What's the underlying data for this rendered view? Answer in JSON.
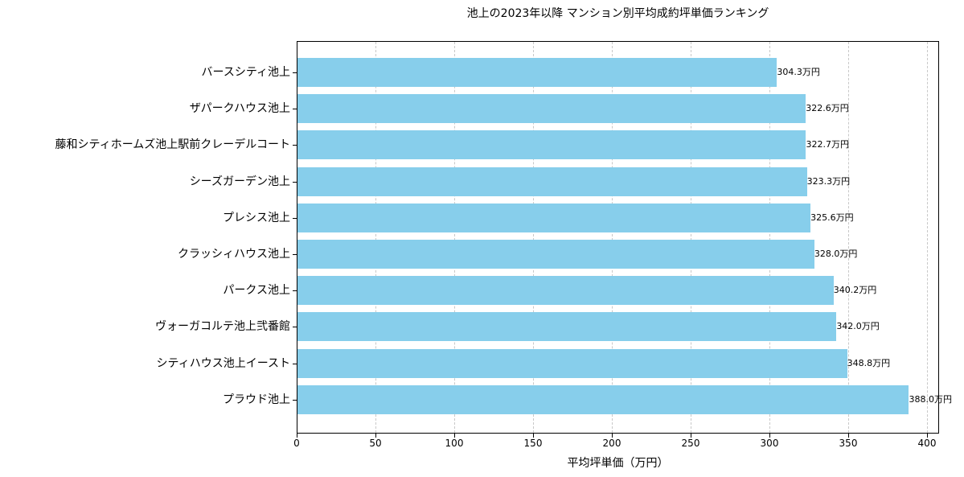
{
  "chart_data": {
    "type": "bar",
    "orientation": "horizontal",
    "title": "池上の2023年以降 マンション別平均成約坪単価ランキング",
    "xlabel": "平均坪単価（万円）",
    "ylabel": "",
    "xlim": [
      0,
      408
    ],
    "xticks": [
      0,
      50,
      100,
      150,
      200,
      250,
      300,
      350,
      400
    ],
    "grid": "x dashed",
    "bar_color": "#87ceeb",
    "categories": [
      "バースシティ池上",
      "ザパークハウス池上",
      "藤和シティホームズ池上駅前クレーデルコート",
      "シーズガーデン池上",
      "プレシス池上",
      "クラッシィハウス池上",
      "パークス池上",
      "ヴォーガコルテ池上弐番館",
      "シティハウス池上イースト",
      "プラウド池上"
    ],
    "values": [
      304.3,
      322.6,
      322.7,
      323.3,
      325.6,
      328.0,
      340.2,
      342.0,
      348.8,
      388.0
    ],
    "value_labels": [
      "304.3万円",
      "322.6万円",
      "322.7万円",
      "323.3万円",
      "325.6万円",
      "328.0万円",
      "340.2万円",
      "342.0万円",
      "348.8万円",
      "388.0万円"
    ]
  }
}
